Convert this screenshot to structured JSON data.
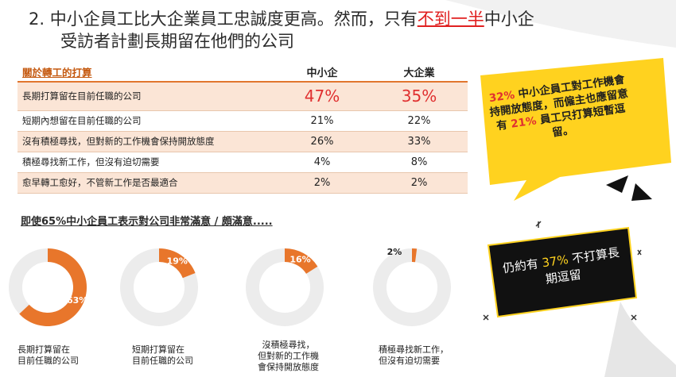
{
  "title": {
    "line1_pre": "2. 中小企員工比大企業員工忠誠度更高。然而，只有",
    "line1_highlight": "不到一半",
    "line1_post": "中小企",
    "line2": "受訪者計劃長期留在他們的公司"
  },
  "table": {
    "headers": [
      "關於轉工的打算",
      "中小企",
      "大企業"
    ],
    "rows": [
      {
        "label": "長期打算留在目前任職的公司",
        "sme": "47%",
        "large": "35%"
      },
      {
        "label": "短期內想留在目前任職的公司",
        "sme": "21%",
        "large": "22%"
      },
      {
        "label": "沒有積極尋找，但對新的工作機會保持開放態度",
        "sme": "26%",
        "large": "33%"
      },
      {
        "label": "積極尋找新工作，但沒有迫切需要",
        "sme": "4%",
        "large": "8%"
      },
      {
        "label": "愈早轉工愈好，不管新工作是否最適合",
        "sme": "2%",
        "large": "2%"
      }
    ]
  },
  "subhead": "即使65%中小企員工表示對公司非常滿意 / 頗滿意.....",
  "chart_data": {
    "type": "pie",
    "title": "",
    "series": [
      {
        "labels": [
          "長期打算留在",
          "目前任職的公司"
        ],
        "value": 63,
        "value_label": "63%"
      },
      {
        "labels": [
          "短期打算留在",
          "目前任職的公司"
        ],
        "value": 19,
        "value_label": "19%"
      },
      {
        "labels": [
          "沒積極尋找，",
          "但對新的工作機",
          "會保持開放態度"
        ],
        "value": 16,
        "value_label": "16%"
      },
      {
        "labels": [
          "積極尋找新工作，",
          "但沒有迫切需要"
        ],
        "value": 2,
        "value_label": "2%"
      }
    ],
    "colors": {
      "fill": "#e8762b",
      "track": "#ececec"
    }
  },
  "callout": {
    "pct1": "32%",
    "text1": "中小企員工對工作機會持開放態度，而僱主也應留意有",
    "pct2": "21%",
    "text2": "員工只打算短暫逗留。"
  },
  "badge": {
    "pre": "仍約有",
    "pct": "37%",
    "post": "不打算長期逗留"
  },
  "colors": {
    "accent": "#e8762b",
    "highlight": "#e03030",
    "callout_bg": "#ffd21f",
    "badge_bg": "#111111"
  }
}
